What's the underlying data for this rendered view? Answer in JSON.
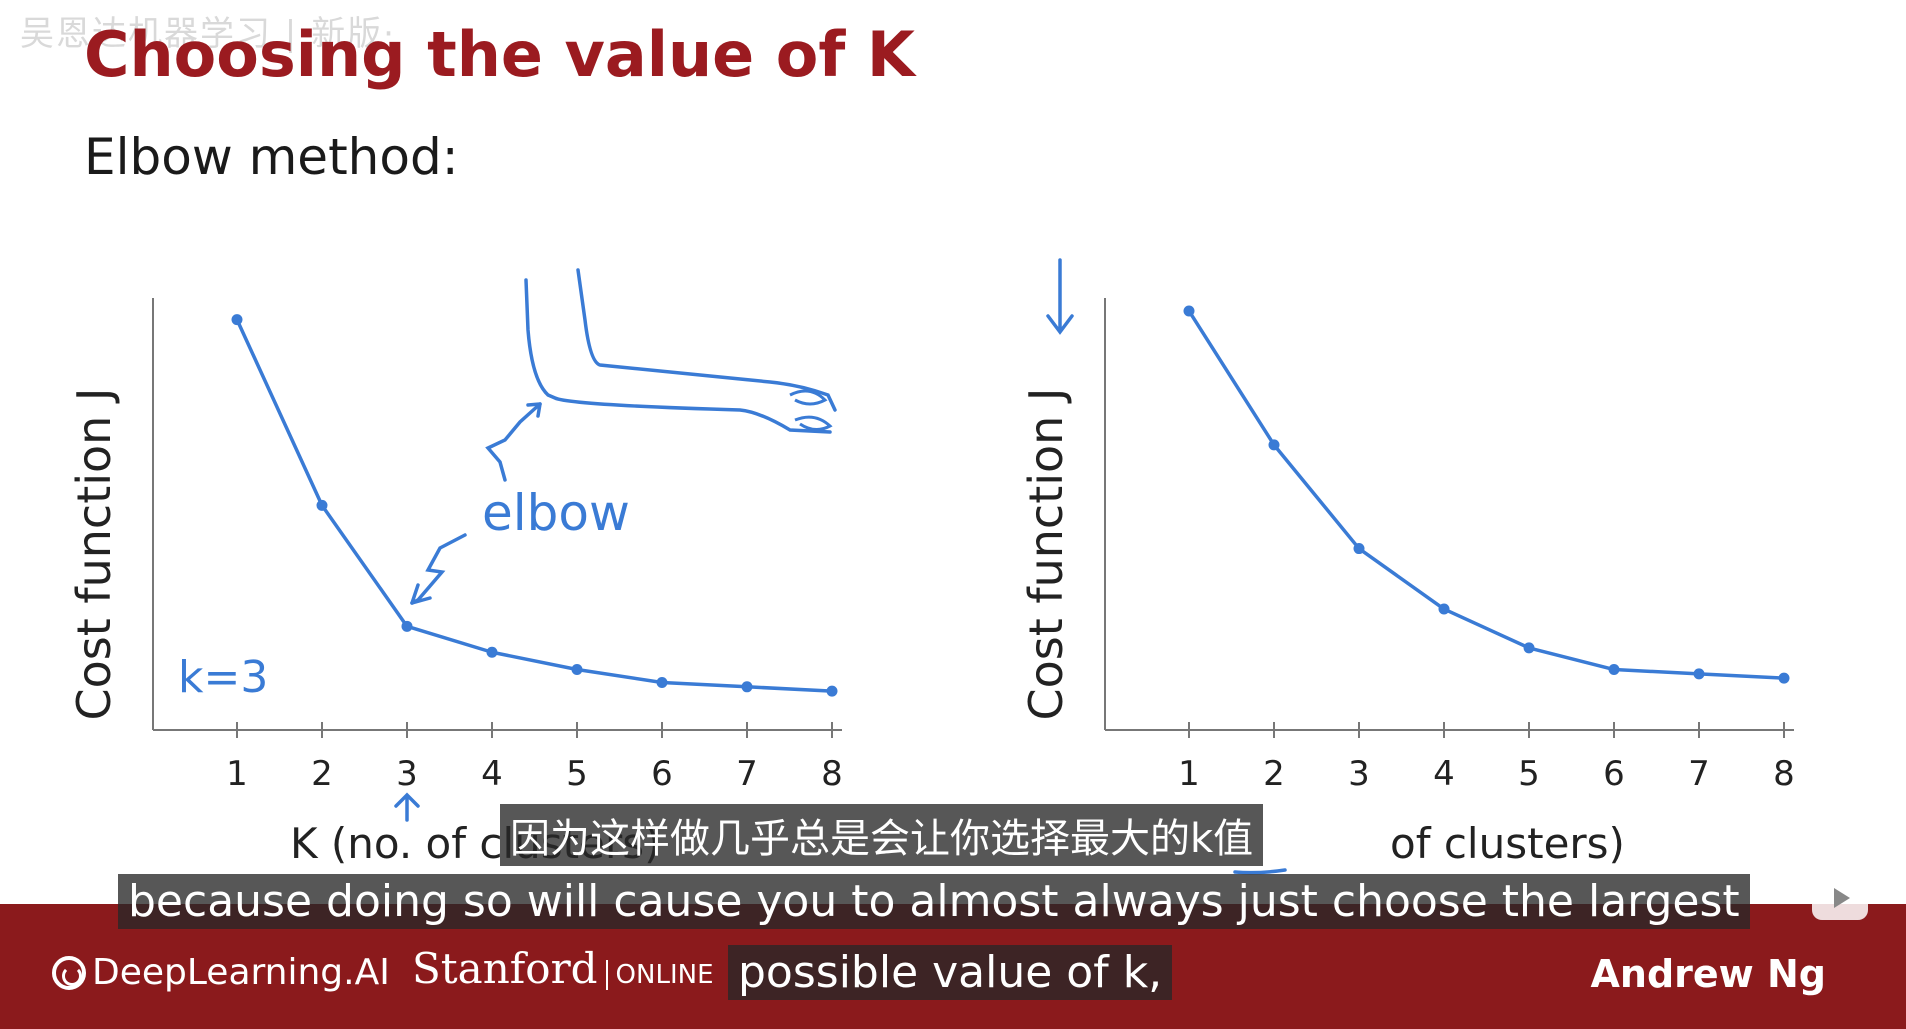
{
  "slide": {
    "watermark": "吴恩达机器学习 | 新版·",
    "title": "Choosing the value of K",
    "subtitle": "Elbow method:"
  },
  "chart_data": [
    {
      "type": "line",
      "x": [
        1,
        2,
        3,
        4,
        5,
        6,
        7,
        8
      ],
      "values": [
        0.95,
        0.52,
        0.24,
        0.18,
        0.14,
        0.11,
        0.1,
        0.09
      ],
      "ylabel": "Cost function J",
      "xlabel": "K (no. of clusters)",
      "ylim": [
        0,
        1
      ],
      "annotations": [
        "elbow",
        "k=3"
      ],
      "color": "#3a7bd5",
      "grid": false
    },
    {
      "type": "line",
      "x": [
        1,
        2,
        3,
        4,
        5,
        6,
        7,
        8
      ],
      "values": [
        0.97,
        0.66,
        0.42,
        0.28,
        0.19,
        0.14,
        0.13,
        0.12
      ],
      "ylabel": "Cost function J",
      "xlabel": "K (no. of clusters)",
      "ylim": [
        0,
        1
      ],
      "color": "#3a7bd5",
      "grid": false
    }
  ],
  "footer": {
    "logo_deeplearning": "DeepLearning.AI",
    "logo_stanford": "Stanford",
    "logo_online": "ONLINE",
    "author": "Andrew Ng"
  },
  "subtitles": {
    "chinese": "因为这样做几乎总是会让你选择最大的k值",
    "english_line1": "because doing so will cause you to almost always just choose the largest",
    "english_line2": "possible value of k,"
  },
  "icons": {
    "player": "play-icon"
  }
}
